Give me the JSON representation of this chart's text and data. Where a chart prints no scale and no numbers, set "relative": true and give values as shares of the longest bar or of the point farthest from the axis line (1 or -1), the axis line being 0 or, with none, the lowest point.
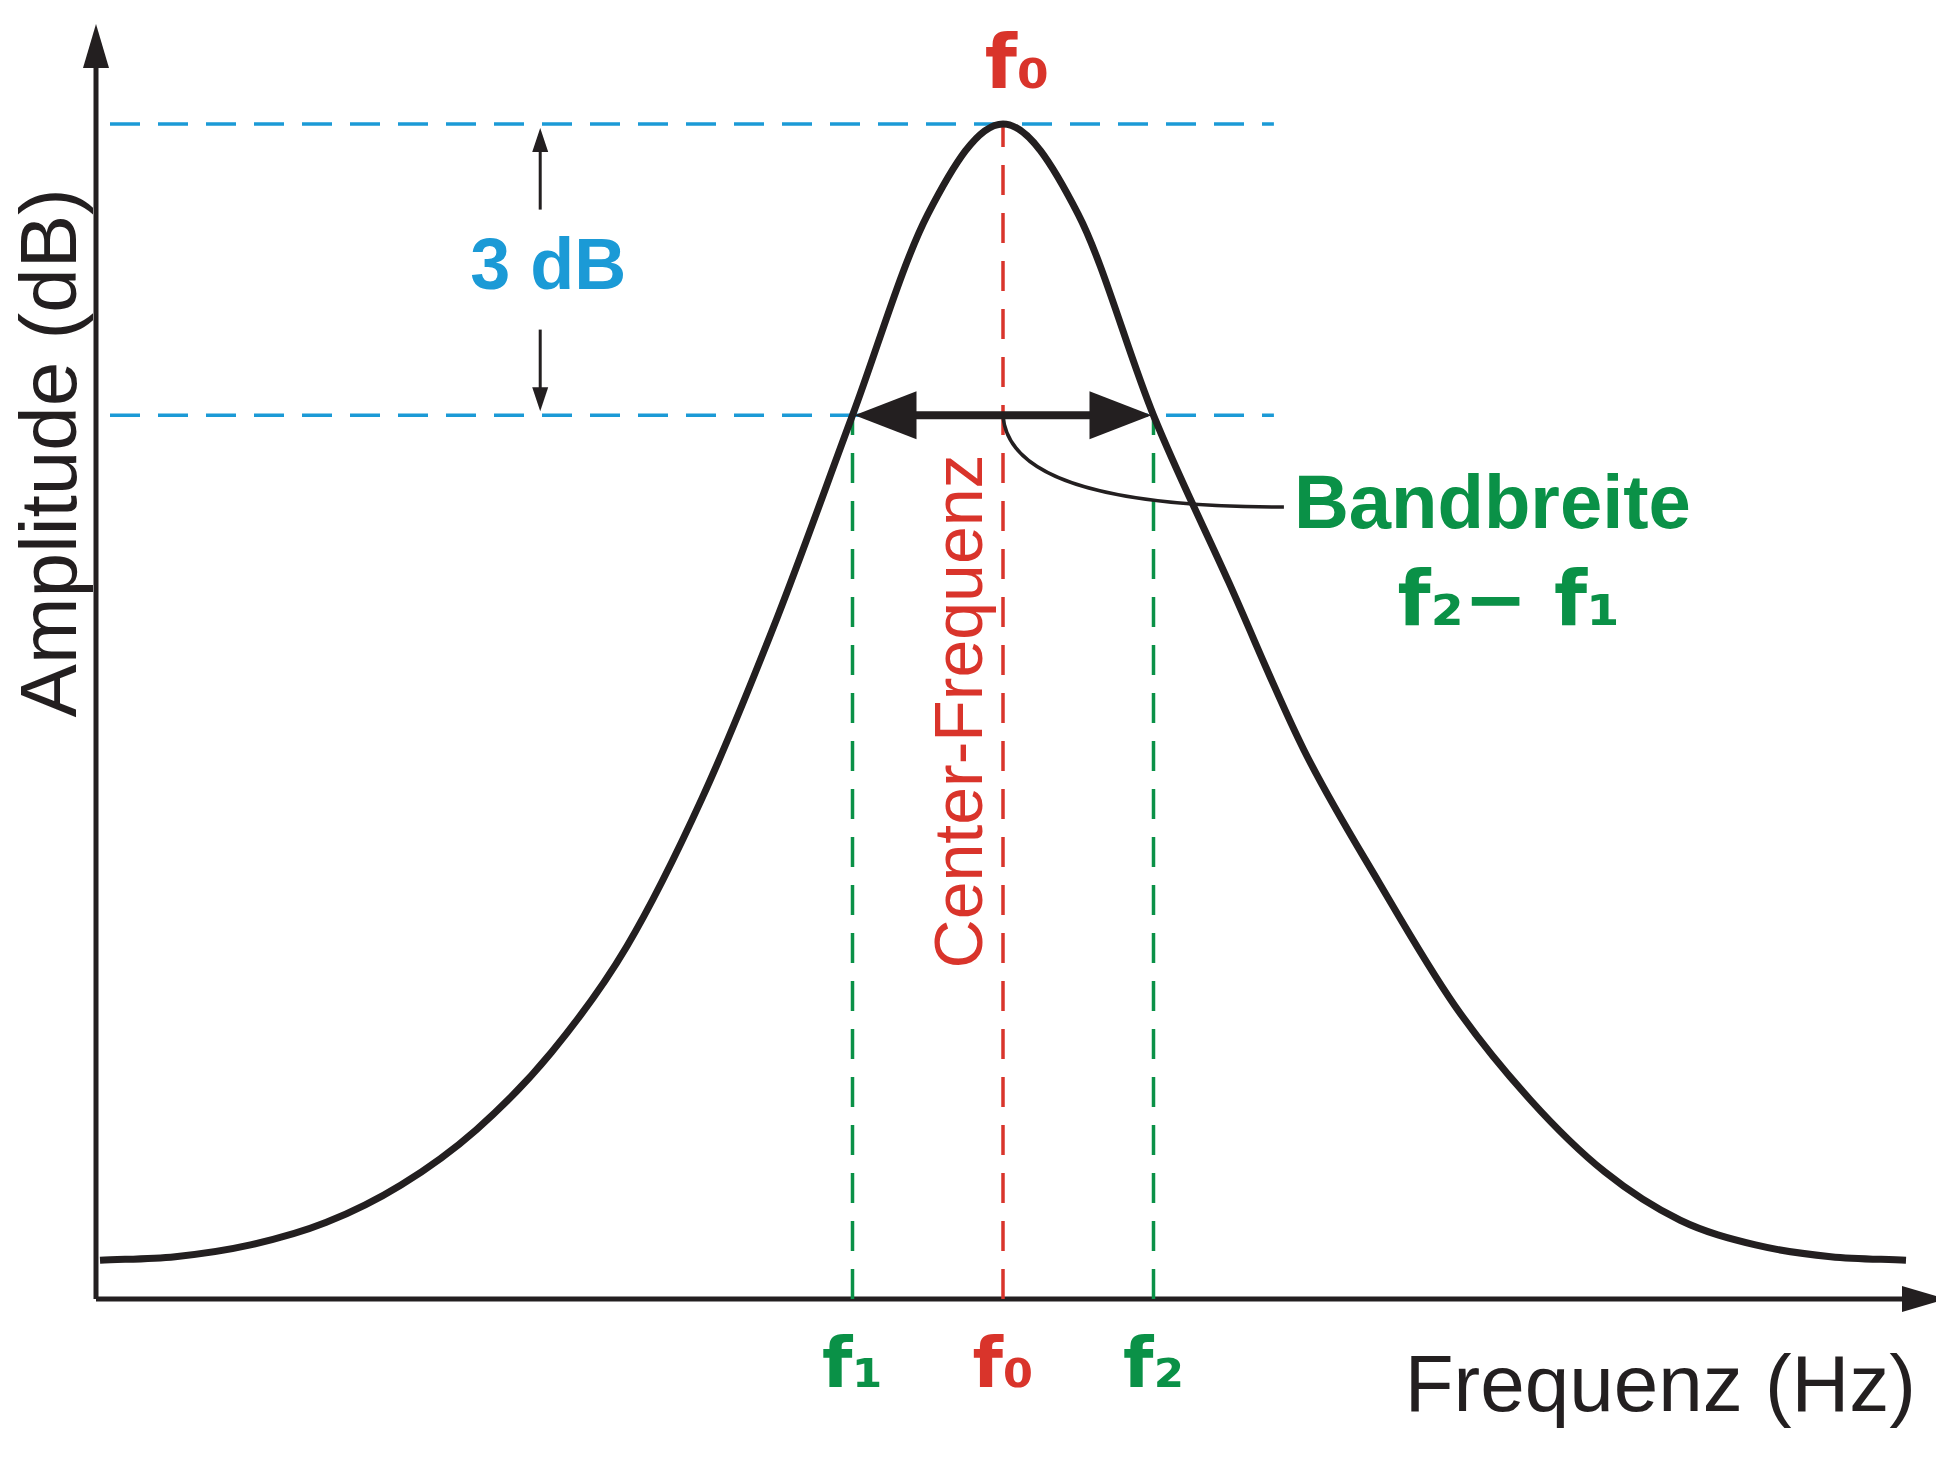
{
  "chart_data": {
    "type": "line",
    "relative": true,
    "xlabel": "Frequenz (Hz)",
    "ylabel": "Amplitude (dB)",
    "categories": [
      null,
      null,
      null,
      null,
      null,
      null,
      null,
      null,
      null,
      null,
      "f₁",
      null,
      "f₀",
      null,
      "f₂",
      null,
      null,
      null,
      null,
      null,
      null,
      null,
      null,
      null,
      null
    ],
    "series": [
      {
        "color": "#231f20",
        "values": [
          0.033,
          0.036,
          0.046,
          0.065,
          0.097,
          0.144,
          0.21,
          0.3,
          0.426,
          0.58,
          0.752,
          0.923,
          1,
          0.923,
          0.752,
          0.61,
          0.467,
          0.354,
          0.25,
          0.17,
          0.108,
          0.067,
          0.046,
          0.036,
          0.033
        ]
      }
    ],
    "ref_lines": [
      {
        "axis": "y",
        "value": 1,
        "color": "#1b9ad6",
        "line_style": "dashed"
      },
      {
        "axis": "y",
        "value": 0.752,
        "color": "#1b9ad6",
        "line_style": "dashed"
      },
      {
        "axis": "x",
        "value": "f₁",
        "color": "#0a9147",
        "line_style": "dashed"
      },
      {
        "axis": "x",
        "value": "f₀",
        "label": "f₀",
        "color": "#d9342b",
        "line_style": "dashed"
      },
      {
        "axis": "x",
        "value": "f₂",
        "color": "#0a9147",
        "line_style": "dashed"
      }
    ],
    "annotations": [
      "3 dB",
      "Center-Frequenz",
      "Bandbreite",
      "f₂− f₁"
    ],
    "marker": "none",
    "line_style": "solid",
    "grid": false,
    "legend": false
  }
}
